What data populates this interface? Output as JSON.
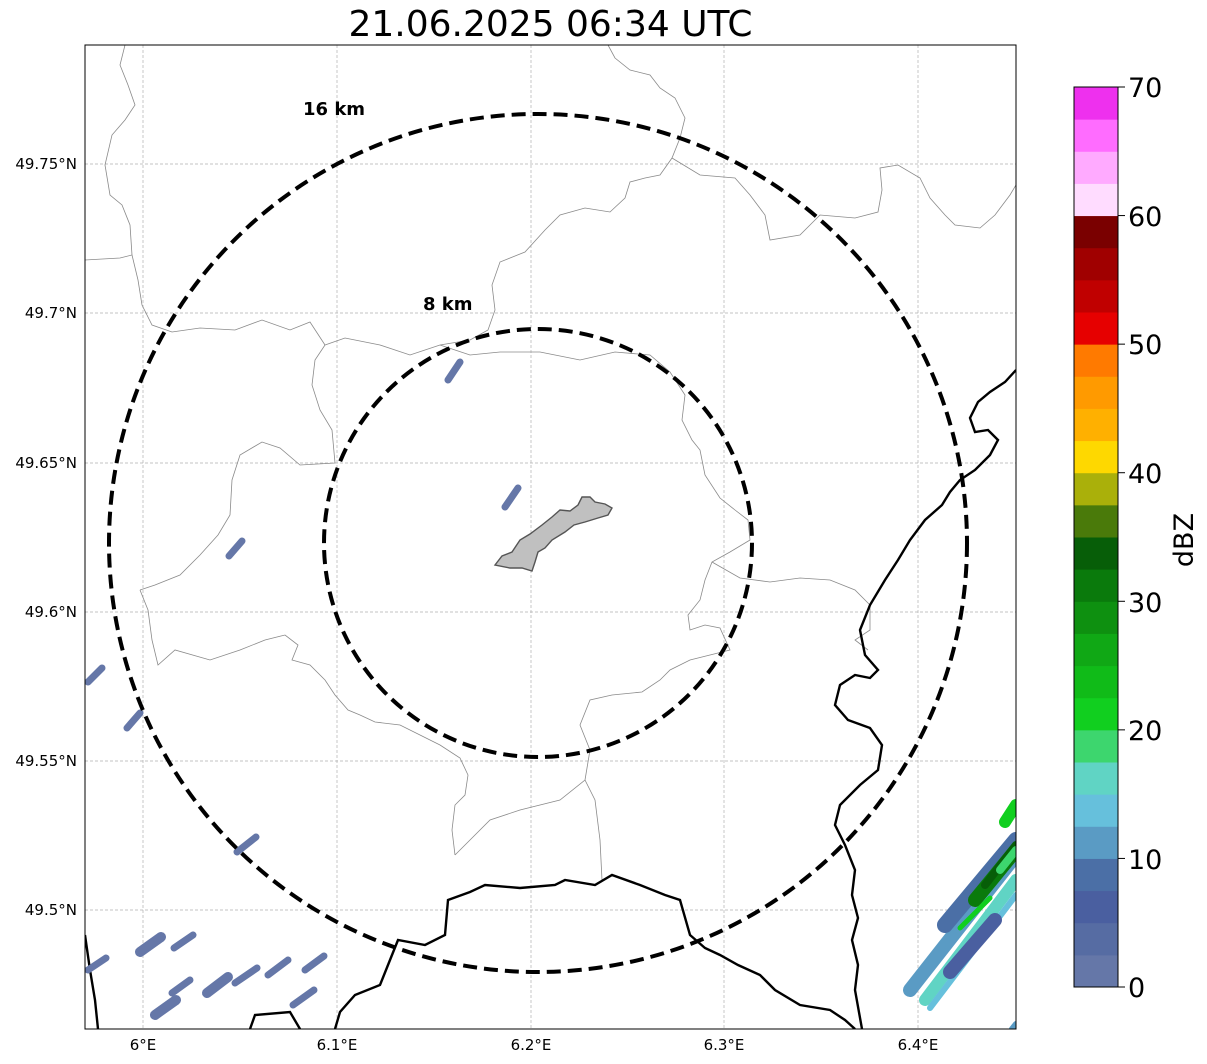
{
  "title": "21.06.2025 06:34 UTC",
  "map": {
    "lat_ticks": [
      "49.75°N",
      "49.7°N",
      "49.65°N",
      "49.6°N",
      "49.55°N",
      "49.5°N"
    ],
    "lon_ticks": [
      "6°E",
      "6.1°E",
      "6.2°E",
      "6.3°E",
      "6.4°E"
    ],
    "lon_range": [
      5.97,
      6.45
    ],
    "lat_range": [
      49.46,
      49.79
    ],
    "radar_center": {
      "lon": 6.203,
      "lat": 49.623
    },
    "rings": [
      {
        "label": "8 km",
        "radius_km": 8
      },
      {
        "label": "16 km",
        "radius_km": 16
      }
    ],
    "gridlines": true,
    "city_fill_color": "#c0c0c0",
    "ring_color": "#000000"
  },
  "colorbar": {
    "label": "dBZ",
    "ticks": [
      "0",
      "10",
      "20",
      "30",
      "40",
      "50",
      "60",
      "70"
    ],
    "min": 0,
    "max": 70,
    "step": 2.5,
    "colors": [
      "#6577a8",
      "#566ca3",
      "#4a5fa0",
      "#4b6fa6",
      "#5a9bc4",
      "#66c0dc",
      "#60d4c4",
      "#3dd66e",
      "#11cf1f",
      "#10bb18",
      "#10a815",
      "#0e9010",
      "#0a7a0c",
      "#075e08",
      "#4a7a0a",
      "#aab00a",
      "#fed800",
      "#ffb000",
      "#ff9a00",
      "#ff7a00",
      "#e60000",
      "#c00000",
      "#a00000",
      "#7a0000",
      "#ffdcff",
      "#ffaaff",
      "#ff6cff",
      "#ee30ee"
    ]
  }
}
